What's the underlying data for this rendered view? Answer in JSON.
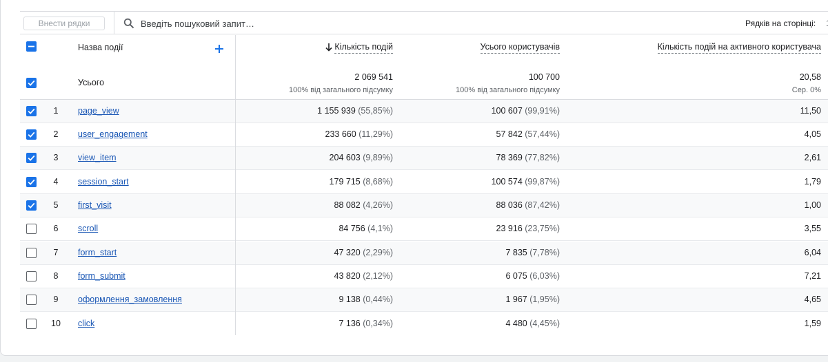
{
  "legend_colors": [
    "#1a73e8",
    "#34a853",
    "#f9ab00",
    "#e8711a",
    "#e52592"
  ],
  "toolbar": {
    "rows_input_placeholder": "Внести рядки",
    "search_placeholder": "Введіть пошуковий запит…",
    "search_icon": "search-icon",
    "rows_per_page_label": "Рядків на сторінці:",
    "rows_per_page_value": "1"
  },
  "header": {
    "event_name": "Назва події",
    "add_dimension_icon": "plus-icon",
    "sort_icon": "arrow-down-icon",
    "col_event_count": "Кількість подій",
    "col_total_users": "Усього користувачів",
    "col_events_per_user": "Кількість подій на активного користувача"
  },
  "totals": {
    "label": "Усього",
    "event_count": "2 069 541",
    "event_count_sub": "100% від загального підсумку",
    "total_users": "100 700",
    "total_users_sub": "100% від загального підсумку",
    "events_per_user": "20,58",
    "events_per_user_sub": "Сер. 0%"
  },
  "rows": [
    {
      "index": "1",
      "name": "page_view",
      "checked": true,
      "count": "1 155 939",
      "count_pct": "(55,85%)",
      "users": "100 607",
      "users_pct": "(99,91%)",
      "per_user": "11,50"
    },
    {
      "index": "2",
      "name": "user_engagement",
      "checked": true,
      "count": "233 660",
      "count_pct": "(11,29%)",
      "users": "57 842",
      "users_pct": "(57,44%)",
      "per_user": "4,05"
    },
    {
      "index": "3",
      "name": "view_item",
      "checked": true,
      "count": "204 603",
      "count_pct": "(9,89%)",
      "users": "78 369",
      "users_pct": "(77,82%)",
      "per_user": "2,61"
    },
    {
      "index": "4",
      "name": "session_start",
      "checked": true,
      "count": "179 715",
      "count_pct": "(8,68%)",
      "users": "100 574",
      "users_pct": "(99,87%)",
      "per_user": "1,79"
    },
    {
      "index": "5",
      "name": "first_visit",
      "checked": true,
      "count": "88 082",
      "count_pct": "(4,26%)",
      "users": "88 036",
      "users_pct": "(87,42%)",
      "per_user": "1,00"
    },
    {
      "index": "6",
      "name": "scroll",
      "checked": false,
      "count": "84 756",
      "count_pct": "(4,1%)",
      "users": "23 916",
      "users_pct": "(23,75%)",
      "per_user": "3,55"
    },
    {
      "index": "7",
      "name": "form_start",
      "checked": false,
      "count": "47 320",
      "count_pct": "(2,29%)",
      "users": "7 835",
      "users_pct": "(7,78%)",
      "per_user": "6,04"
    },
    {
      "index": "8",
      "name": "form_submit",
      "checked": false,
      "count": "43 820",
      "count_pct": "(2,12%)",
      "users": "6 075",
      "users_pct": "(6,03%)",
      "per_user": "7,21"
    },
    {
      "index": "9",
      "name": "оформлення_замовлення",
      "checked": false,
      "count": "9 138",
      "count_pct": "(0,44%)",
      "users": "1 967",
      "users_pct": "(1,95%)",
      "per_user": "4,65"
    },
    {
      "index": "10",
      "name": "click",
      "checked": false,
      "count": "7 136",
      "count_pct": "(0,34%)",
      "users": "4 480",
      "users_pct": "(4,45%)",
      "per_user": "1,59"
    }
  ]
}
